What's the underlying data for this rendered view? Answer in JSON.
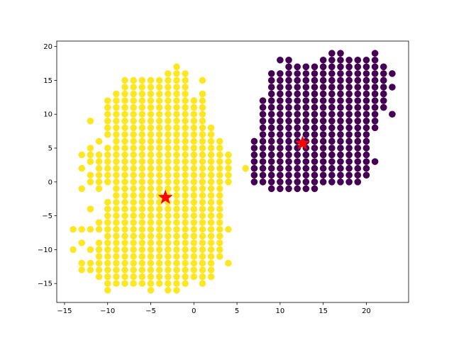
{
  "colors": {
    "background": "#ffffff",
    "axes": "#000000",
    "cluster_a": "#440154",
    "cluster_b": "#fde725",
    "centroid": "#ff0000"
  },
  "chart_data": {
    "type": "scatter",
    "title": "",
    "xlabel": "",
    "ylabel": "",
    "xlim": [
      -15.9,
      24.9
    ],
    "ylim": [
      -17.8,
      20.8
    ],
    "grid": false,
    "legend": "none",
    "xticks": [
      -15,
      -10,
      -5,
      0,
      5,
      10,
      15,
      20
    ],
    "yticks": [
      -15,
      -10,
      -5,
      0,
      5,
      10,
      15,
      20
    ],
    "clusters": [
      {
        "color": "#fde725",
        "centroid": [
          -3.3,
          -2.3
        ],
        "rows": [
          {
            "y": 17,
            "x": [
              [
                -2,
                -2
              ]
            ]
          },
          {
            "y": 16,
            "x": [
              [
                -3,
                -1
              ]
            ]
          },
          {
            "y": 15,
            "x": [
              [
                -8,
                -1
              ],
              [
                1,
                1
              ]
            ]
          },
          {
            "y": 14,
            "x": [
              [
                -8,
                -1
              ]
            ]
          },
          {
            "y": 13,
            "x": [
              [
                -9,
                -1
              ],
              [
                1,
                1
              ]
            ]
          },
          {
            "y": 12,
            "x": [
              [
                -10,
                1
              ]
            ]
          },
          {
            "y": 11,
            "x": [
              [
                -10,
                1
              ]
            ]
          },
          {
            "y": 10,
            "x": [
              [
                -10,
                1
              ]
            ]
          },
          {
            "y": 9,
            "x": [
              [
                -12,
                -12
              ],
              [
                -10,
                1
              ]
            ]
          },
          {
            "y": 8,
            "x": [
              [
                -10,
                2
              ]
            ]
          },
          {
            "y": 7,
            "x": [
              [
                -10,
                2
              ]
            ]
          },
          {
            "y": 6,
            "x": [
              [
                -11,
                -11
              ],
              [
                -9,
                3
              ]
            ]
          },
          {
            "y": 5,
            "x": [
              [
                -12,
                -12
              ],
              [
                -10,
                3
              ]
            ]
          },
          {
            "y": 4,
            "x": [
              [
                -13,
                3
              ],
              [
                4,
                4
              ]
            ]
          },
          {
            "y": 3,
            "x": [
              [
                -12,
                4
              ]
            ]
          },
          {
            "y": 2,
            "x": [
              [
                -13,
                -13
              ],
              [
                -11,
                4
              ]
            ]
          },
          {
            "y": 1,
            "x": [
              [
                -12,
                4
              ]
            ]
          },
          {
            "y": 0,
            "x": [
              [
                -12,
                4
              ]
            ]
          },
          {
            "y": -1,
            "x": [
              [
                -13,
                -13
              ],
              [
                -11,
                -11
              ],
              [
                -9,
                3
              ]
            ]
          },
          {
            "y": -2,
            "x": [
              [
                -9,
                3
              ]
            ]
          },
          {
            "y": -3,
            "x": [
              [
                -10,
                3
              ]
            ]
          },
          {
            "y": -4,
            "x": [
              [
                -12,
                -12
              ],
              [
                -10,
                3
              ]
            ]
          },
          {
            "y": -5,
            "x": [
              [
                -10,
                3
              ]
            ]
          },
          {
            "y": -6,
            "x": [
              [
                -11,
                3
              ]
            ]
          },
          {
            "y": -7,
            "x": [
              [
                -14,
                -14
              ],
              [
                -13,
                -13
              ],
              [
                -12,
                3
              ],
              [
                4,
                4
              ]
            ]
          },
          {
            "y": -8,
            "x": [
              [
                -10,
                3
              ]
            ]
          },
          {
            "y": -9,
            "x": [
              [
                -13,
                -13
              ],
              [
                -11,
                3
              ]
            ]
          },
          {
            "y": -10,
            "x": [
              [
                -14,
                -14
              ],
              [
                -12,
                3
              ]
            ]
          },
          {
            "y": -11,
            "x": [
              [
                -11,
                3
              ]
            ]
          },
          {
            "y": -12,
            "x": [
              [
                -13,
                2
              ],
              [
                4,
                4
              ]
            ]
          },
          {
            "y": -13,
            "x": [
              [
                -13,
                2
              ]
            ]
          },
          {
            "y": -14,
            "x": [
              [
                -11,
                2
              ]
            ]
          },
          {
            "y": -15,
            "x": [
              [
                -10,
                -1
              ],
              [
                1,
                1
              ]
            ]
          },
          {
            "y": -16,
            "x": [
              [
                -10,
                -10
              ],
              [
                -5,
                -5
              ],
              [
                -3,
                -2
              ]
            ]
          }
        ],
        "extra_points": [
          [
            6,
            2
          ]
        ]
      },
      {
        "color": "#440154",
        "centroid": [
          12.6,
          5.7
        ],
        "rows": [
          {
            "y": 19,
            "x": [
              [
                16,
                17
              ],
              [
                21,
                21
              ]
            ]
          },
          {
            "y": 18,
            "x": [
              [
                10,
                11
              ],
              [
                15,
                21
              ]
            ]
          },
          {
            "y": 17,
            "x": [
              [
                11,
                22
              ]
            ]
          },
          {
            "y": 16,
            "x": [
              [
                9,
                22
              ],
              [
                23,
                23
              ]
            ]
          },
          {
            "y": 15,
            "x": [
              [
                9,
                22
              ]
            ]
          },
          {
            "y": 14,
            "x": [
              [
                9,
                22
              ],
              [
                23,
                23
              ]
            ]
          },
          {
            "y": 13,
            "x": [
              [
                9,
                22
              ]
            ]
          },
          {
            "y": 12,
            "x": [
              [
                8,
                22
              ]
            ]
          },
          {
            "y": 11,
            "x": [
              [
                8,
                22
              ]
            ]
          },
          {
            "y": 10,
            "x": [
              [
                8,
                21
              ],
              [
                23,
                23
              ]
            ]
          },
          {
            "y": 9,
            "x": [
              [
                8,
                21
              ]
            ]
          },
          {
            "y": 8,
            "x": [
              [
                8,
                21
              ]
            ]
          },
          {
            "y": 7,
            "x": [
              [
                8,
                20
              ]
            ]
          },
          {
            "y": 6,
            "x": [
              [
                7,
                20
              ]
            ]
          },
          {
            "y": 5,
            "x": [
              [
                7,
                20
              ]
            ]
          },
          {
            "y": 4,
            "x": [
              [
                7,
                20
              ]
            ]
          },
          {
            "y": 3,
            "x": [
              [
                7,
                20
              ],
              [
                21,
                21
              ]
            ]
          },
          {
            "y": 2,
            "x": [
              [
                7,
                20
              ]
            ]
          },
          {
            "y": 1,
            "x": [
              [
                7,
                20
              ]
            ]
          },
          {
            "y": 0,
            "x": [
              [
                7,
                19
              ]
            ]
          },
          {
            "y": -1,
            "x": [
              [
                9,
                9
              ],
              [
                10,
                10
              ],
              [
                11,
                11
              ],
              [
                12,
                12
              ],
              [
                13,
                13
              ],
              [
                14,
                14
              ]
            ]
          }
        ],
        "extra_points": []
      }
    ]
  }
}
